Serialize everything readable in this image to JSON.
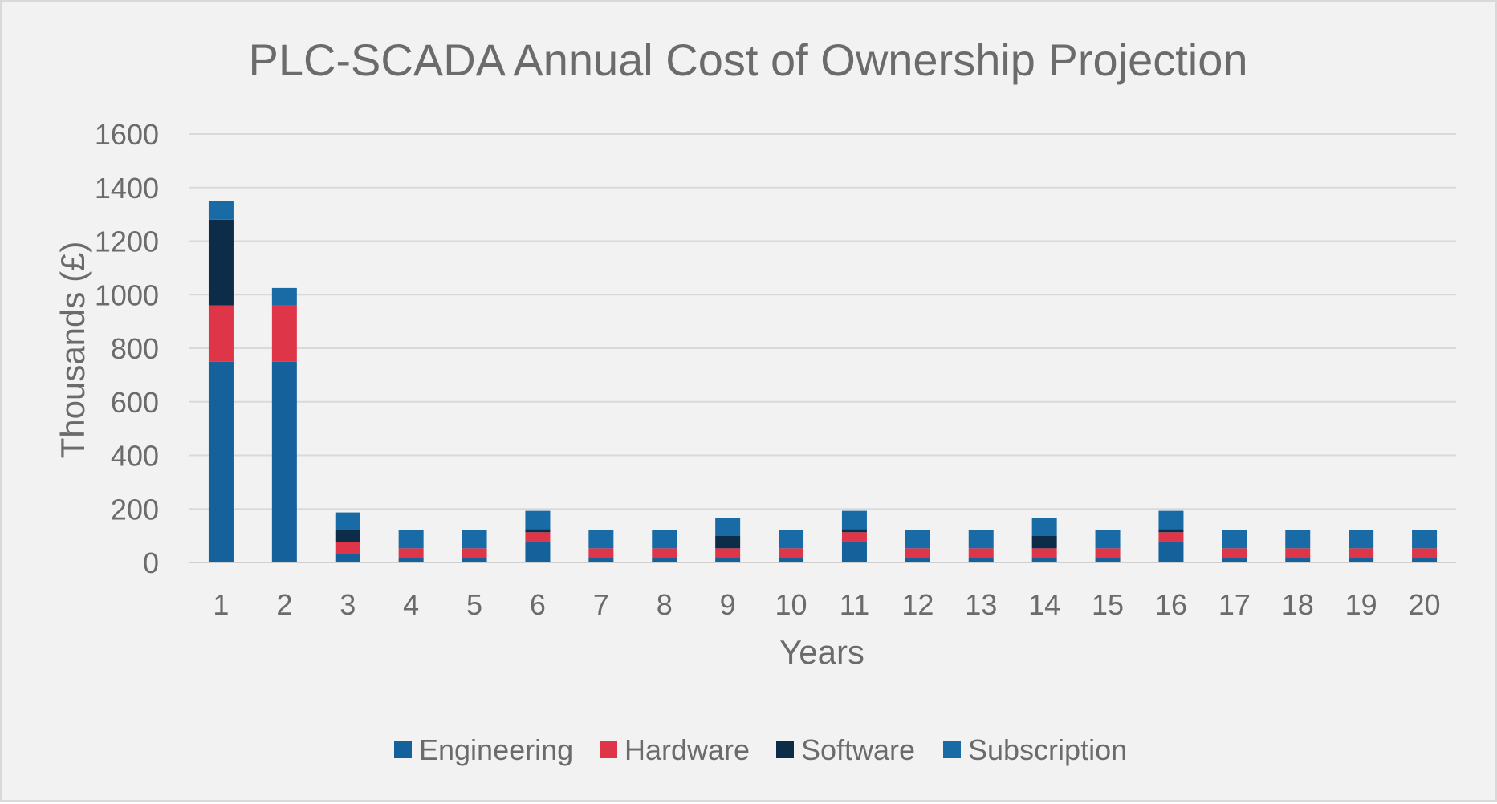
{
  "chart_data": {
    "type": "bar",
    "stacked": true,
    "title": "PLC-SCADA Annual Cost of Ownership Projection",
    "xlabel": "Years",
    "ylabel": "Thousands (£)",
    "ylim": [
      0,
      1600
    ],
    "yticks": [
      0,
      200,
      400,
      600,
      800,
      1000,
      1200,
      1400,
      1600
    ],
    "grid": true,
    "legend_position": "bottom",
    "categories": [
      "1",
      "2",
      "3",
      "4",
      "5",
      "6",
      "7",
      "8",
      "9",
      "10",
      "11",
      "12",
      "13",
      "14",
      "15",
      "16",
      "17",
      "18",
      "19",
      "20"
    ],
    "series": [
      {
        "name": "Engineering",
        "color": "#14619b",
        "values": [
          750,
          750,
          35,
          15,
          15,
          78,
          15,
          15,
          15,
          15,
          78,
          15,
          15,
          15,
          15,
          78,
          15,
          15,
          15,
          15
        ]
      },
      {
        "name": "Hardware",
        "color": "#df3548",
        "values": [
          210,
          210,
          40,
          38,
          38,
          35,
          38,
          38,
          38,
          38,
          35,
          38,
          38,
          38,
          38,
          35,
          38,
          38,
          38,
          38
        ]
      },
      {
        "name": "Software",
        "color": "#0d2c47",
        "values": [
          320,
          0,
          45,
          0,
          0,
          12,
          0,
          0,
          47,
          0,
          12,
          0,
          0,
          47,
          0,
          12,
          0,
          0,
          0,
          0
        ]
      },
      {
        "name": "Subscription",
        "color": "#196ba6",
        "values": [
          70,
          65,
          67,
          67,
          67,
          68,
          67,
          67,
          67,
          67,
          68,
          67,
          67,
          67,
          67,
          68,
          67,
          67,
          67,
          67
        ]
      }
    ]
  }
}
